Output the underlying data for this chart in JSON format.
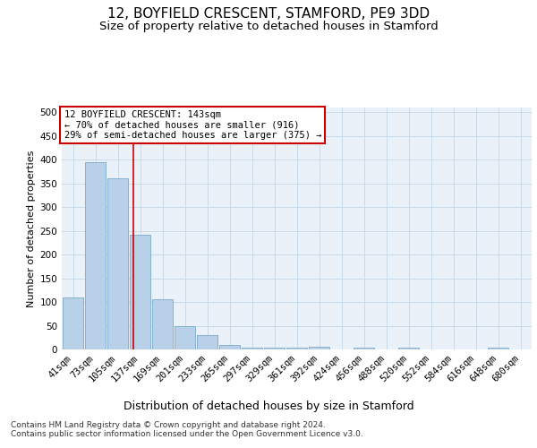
{
  "title": "12, BOYFIELD CRESCENT, STAMFORD, PE9 3DD",
  "subtitle": "Size of property relative to detached houses in Stamford",
  "xlabel": "Distribution of detached houses by size in Stamford",
  "ylabel": "Number of detached properties",
  "categories": [
    "41sqm",
    "73sqm",
    "105sqm",
    "137sqm",
    "169sqm",
    "201sqm",
    "233sqm",
    "265sqm",
    "297sqm",
    "329sqm",
    "361sqm",
    "392sqm",
    "424sqm",
    "456sqm",
    "488sqm",
    "520sqm",
    "552sqm",
    "584sqm",
    "616sqm",
    "648sqm",
    "680sqm"
  ],
  "values": [
    110,
    395,
    360,
    242,
    105,
    50,
    30,
    10,
    4,
    4,
    4,
    5,
    0,
    3,
    0,
    4,
    0,
    0,
    0,
    4,
    0
  ],
  "bar_color": "#b8d0e8",
  "bar_edge_color": "#7aaaca",
  "grid_color": "#c8daea",
  "background_color": "#eaf1f8",
  "vline_color": "#cc0000",
  "annotation_box_color": "#cc0000",
  "annotation_box_text": "12 BOYFIELD CRESCENT: 143sqm\n← 70% of detached houses are smaller (916)\n29% of semi-detached houses are larger (375) →",
  "footer_text": "Contains HM Land Registry data © Crown copyright and database right 2024.\nContains public sector information licensed under the Open Government Licence v3.0.",
  "ylim": [
    0,
    510
  ],
  "yticks": [
    0,
    50,
    100,
    150,
    200,
    250,
    300,
    350,
    400,
    450,
    500
  ],
  "title_fontsize": 11,
  "subtitle_fontsize": 9.5,
  "xlabel_fontsize": 9,
  "ylabel_fontsize": 8,
  "tick_fontsize": 7.5,
  "annotation_fontsize": 7.5,
  "footer_fontsize": 6.5
}
